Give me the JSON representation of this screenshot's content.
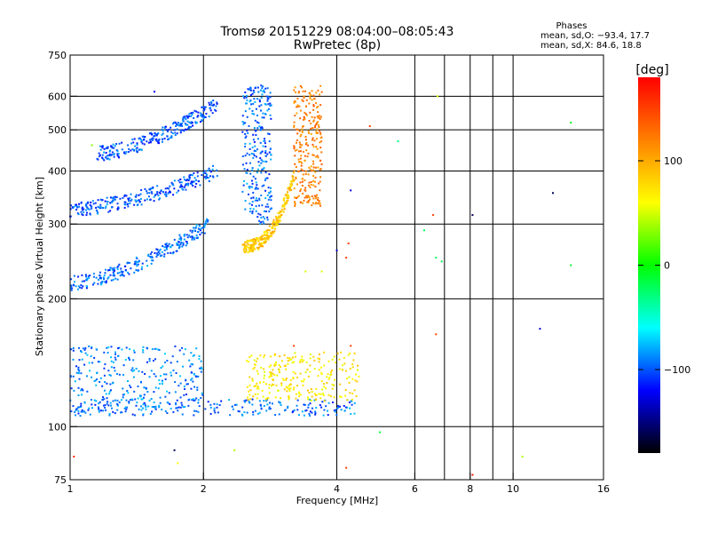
{
  "chart_data": {
    "type": "scatter",
    "title": "Tromsø 20151229 08:04:00–08:05:43",
    "subtitle": "RwPretec (8p)",
    "xlabel": "Frequency [MHz]",
    "ylabel": "Stationary phase Virtual Height [km]",
    "x_scale": "log",
    "y_scale": "log",
    "xlim": [
      1,
      16
    ],
    "ylim": [
      75,
      750
    ],
    "x_ticks": [
      1,
      2,
      4,
      6,
      8,
      10,
      16
    ],
    "y_ticks": [
      75,
      100,
      200,
      300,
      400,
      500,
      600,
      750
    ],
    "grid": true,
    "stats": {
      "heading": "Phases",
      "line_o": "mean, sd,O: −93.4, 17.7",
      "line_x": "mean, sd,X:  84.6, 18.8"
    },
    "colorbar": {
      "label": "[deg]",
      "ticks": [
        100,
        0,
        -100
      ],
      "tick_labels": [
        "100",
        "0",
        "−100"
      ],
      "range": [
        -180,
        180
      ],
      "colors": [
        "#ff0000",
        "#ff8000",
        "#ffff00",
        "#00ff00",
        "#00ffff",
        "#0000ff",
        "#000000"
      ]
    },
    "traces": [
      {
        "f_range": [
          1.0,
          2.05
        ],
        "h_range": [
          218,
          300
        ],
        "phase": -95
      },
      {
        "f_range": [
          1.0,
          2.15
        ],
        "h_range": [
          325,
          400
        ],
        "phase": -100
      },
      {
        "f_range": [
          1.15,
          2.15
        ],
        "h_range": [
          440,
          575
        ],
        "phase": -100
      },
      {
        "f_range": [
          2.45,
          2.85
        ],
        "h_range": [
          300,
          640
        ],
        "phase": -95
      },
      {
        "f_range": [
          2.45,
          3.2
        ],
        "h_range": [
          265,
          390
        ],
        "phase": 85
      },
      {
        "f_range": [
          3.2,
          3.7
        ],
        "h_range": [
          330,
          640
        ],
        "phase": 120
      },
      {
        "f_range": [
          1.0,
          4.4
        ],
        "h_range": [
          106,
          116
        ],
        "phase": -95
      },
      {
        "f_range": [
          1.0,
          2.0
        ],
        "h_range": [
          115,
          155
        ],
        "phase": -90
      },
      {
        "f_range": [
          2.5,
          4.5
        ],
        "h_range": [
          115,
          150
        ],
        "phase": 70
      }
    ],
    "scatter_points": [
      {
        "f": 1.02,
        "h": 85,
        "phase": 160
      },
      {
        "f": 1.12,
        "h": 460,
        "phase": 30
      },
      {
        "f": 1.55,
        "h": 615,
        "phase": -120
      },
      {
        "f": 1.72,
        "h": 88,
        "phase": -160
      },
      {
        "f": 1.75,
        "h": 82,
        "phase": 60
      },
      {
        "f": 2.35,
        "h": 88,
        "phase": 40
      },
      {
        "f": 3.2,
        "h": 155,
        "phase": 150
      },
      {
        "f": 3.4,
        "h": 232,
        "phase": 50
      },
      {
        "f": 3.7,
        "h": 232,
        "phase": 50
      },
      {
        "f": 4.0,
        "h": 260,
        "phase": -130
      },
      {
        "f": 4.2,
        "h": 250,
        "phase": 150
      },
      {
        "f": 4.25,
        "h": 270,
        "phase": 150
      },
      {
        "f": 4.3,
        "h": 360,
        "phase": -130
      },
      {
        "f": 4.3,
        "h": 155,
        "phase": 150
      },
      {
        "f": 4.2,
        "h": 80,
        "phase": 150
      },
      {
        "f": 4.75,
        "h": 510,
        "phase": 150
      },
      {
        "f": 5.0,
        "h": 97,
        "phase": -10
      },
      {
        "f": 5.5,
        "h": 470,
        "phase": -30
      },
      {
        "f": 6.3,
        "h": 290,
        "phase": -20
      },
      {
        "f": 6.6,
        "h": 315,
        "phase": 150
      },
      {
        "f": 6.75,
        "h": 600,
        "phase": 50
      },
      {
        "f": 6.7,
        "h": 250,
        "phase": -20
      },
      {
        "f": 6.7,
        "h": 165,
        "phase": 150
      },
      {
        "f": 6.9,
        "h": 245,
        "phase": -20
      },
      {
        "f": 8.1,
        "h": 315,
        "phase": -160
      },
      {
        "f": 8.1,
        "h": 77,
        "phase": 170
      },
      {
        "f": 10.5,
        "h": 85,
        "phase": 40
      },
      {
        "f": 11.5,
        "h": 170,
        "phase": -130
      },
      {
        "f": 12.3,
        "h": 355,
        "phase": -160
      },
      {
        "f": 13.5,
        "h": 520,
        "phase": -10
      },
      {
        "f": 13.5,
        "h": 240,
        "phase": -10
      }
    ]
  }
}
